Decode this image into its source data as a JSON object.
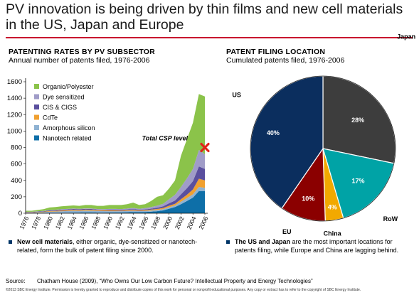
{
  "header": {
    "title": "PV innovation is being driven by thin films and new cell materials in the US, Japan and Europe"
  },
  "left_panel": {
    "title": "PATENTING RATES BY PV SUBSECTOR",
    "subtitle": "Annual number of patents filed, 1976-2006",
    "note_bold": "New cell materials",
    "note_text": ", either organic, dye-sensitized or nanotech-related, form the bulk of patent filing since 2000."
  },
  "right_panel": {
    "title": "PATENT FILING LOCATION",
    "subtitle": "Cumulated patents filed, 1976-2006",
    "note_bold": "The US and Japan",
    "note_text": " are the most important locations for patents filing, while Europe and China are lagging behind."
  },
  "footer": {
    "source_label": "Source:",
    "source_text": "Chatham House (2009), “Who Owns Our Low Carbon Future? Intellectual Property and Energy Technologies”",
    "copyright": "©2013 SBC Energy Institute. Permission is hereby granted to reproduce and distribute copies of this work for personal or nonprofit educational purposes. Any copy or extract has to refer to the copyright of SBC Energy Institute."
  },
  "colors": {
    "accent_rule": "#c8102e",
    "bullet": "#003466"
  },
  "chart_data": [
    {
      "type": "area",
      "stacked": true,
      "title": "PATENTING RATES BY PV SUBSECTOR",
      "subtitle": "Annual number of patents filed, 1976-2006",
      "xlabel": "",
      "ylabel": "",
      "ylim": [
        0,
        1600
      ],
      "yticks": [
        0,
        200,
        400,
        600,
        800,
        1000,
        1200,
        1400,
        1600
      ],
      "xticks": [
        1976,
        1978,
        1980,
        1982,
        1984,
        1986,
        1988,
        1990,
        1992,
        1994,
        1996,
        1998,
        2000,
        2002,
        2004,
        2006
      ],
      "grid": false,
      "legend": "top-left",
      "x": [
        1976,
        1977,
        1978,
        1979,
        1980,
        1981,
        1982,
        1983,
        1984,
        1985,
        1986,
        1987,
        1988,
        1989,
        1990,
        1991,
        1992,
        1993,
        1994,
        1995,
        1996,
        1997,
        1998,
        1999,
        2000,
        2001,
        2002,
        2003,
        2004,
        2005,
        2006
      ],
      "series": [
        {
          "name": "Nanotech related",
          "color": "#0e6fa8",
          "values": [
            2,
            2,
            3,
            3,
            4,
            5,
            6,
            7,
            8,
            8,
            10,
            10,
            8,
            8,
            9,
            10,
            10,
            12,
            14,
            14,
            15,
            20,
            25,
            35,
            55,
            75,
            110,
            150,
            190,
            270,
            270
          ]
        },
        {
          "name": "Amorphous silicon",
          "color": "#8fb2d2",
          "values": [
            5,
            5,
            8,
            10,
            15,
            16,
            18,
            20,
            22,
            20,
            22,
            20,
            20,
            18,
            16,
            15,
            15,
            15,
            14,
            12,
            12,
            14,
            15,
            15,
            18,
            20,
            30,
            35,
            40,
            50,
            40
          ]
        },
        {
          "name": "CdTe",
          "color": "#f0a030",
          "values": [
            4,
            4,
            5,
            6,
            8,
            8,
            10,
            10,
            12,
            10,
            12,
            12,
            10,
            10,
            10,
            10,
            8,
            10,
            10,
            8,
            10,
            10,
            12,
            14,
            18,
            20,
            30,
            40,
            60,
            100,
            90
          ]
        },
        {
          "name": "CIS & CIGS",
          "color": "#5a4f9e",
          "values": [
            4,
            4,
            5,
            6,
            8,
            9,
            10,
            10,
            10,
            10,
            10,
            10,
            8,
            8,
            10,
            10,
            10,
            10,
            12,
            10,
            10,
            12,
            15,
            20,
            30,
            40,
            60,
            80,
            100,
            150,
            140
          ]
        },
        {
          "name": "Dye sensitized",
          "color": "#a09cc8",
          "values": [
            3,
            3,
            3,
            4,
            5,
            5,
            6,
            6,
            6,
            6,
            6,
            6,
            6,
            6,
            8,
            8,
            8,
            10,
            15,
            10,
            15,
            20,
            25,
            30,
            50,
            70,
            90,
            120,
            150,
            200,
            180
          ]
        },
        {
          "name": "Organic/Polyester",
          "color": "#8bc34a",
          "values": [
            12,
            12,
            16,
            21,
            30,
            32,
            35,
            37,
            37,
            36,
            40,
            42,
            38,
            40,
            47,
            47,
            49,
            53,
            65,
            46,
            48,
            74,
            108,
            106,
            129,
            175,
            380,
            475,
            560,
            680,
            700
          ]
        }
      ],
      "annotations": [
        {
          "text": "Total CSP level",
          "x": 2006,
          "y": 800
        }
      ]
    },
    {
      "type": "pie",
      "title": "PATENT FILING LOCATION",
      "subtitle": "Cumulated patents filed, 1976-2006",
      "slices": [
        {
          "label": "Japan",
          "value": 28,
          "display": "28%",
          "color": "#3d3d3d"
        },
        {
          "label": "RoW",
          "value": 17,
          "display": "17%",
          "color": "#00a3a6"
        },
        {
          "label": "China",
          "value": 4,
          "display": "4%",
          "color": "#f2a900"
        },
        {
          "label": "EU",
          "value": 10,
          "display": "10%",
          "color": "#8b0000"
        },
        {
          "label": "US",
          "value": 40,
          "display": "40%",
          "color": "#0b2e5e"
        }
      ]
    }
  ]
}
